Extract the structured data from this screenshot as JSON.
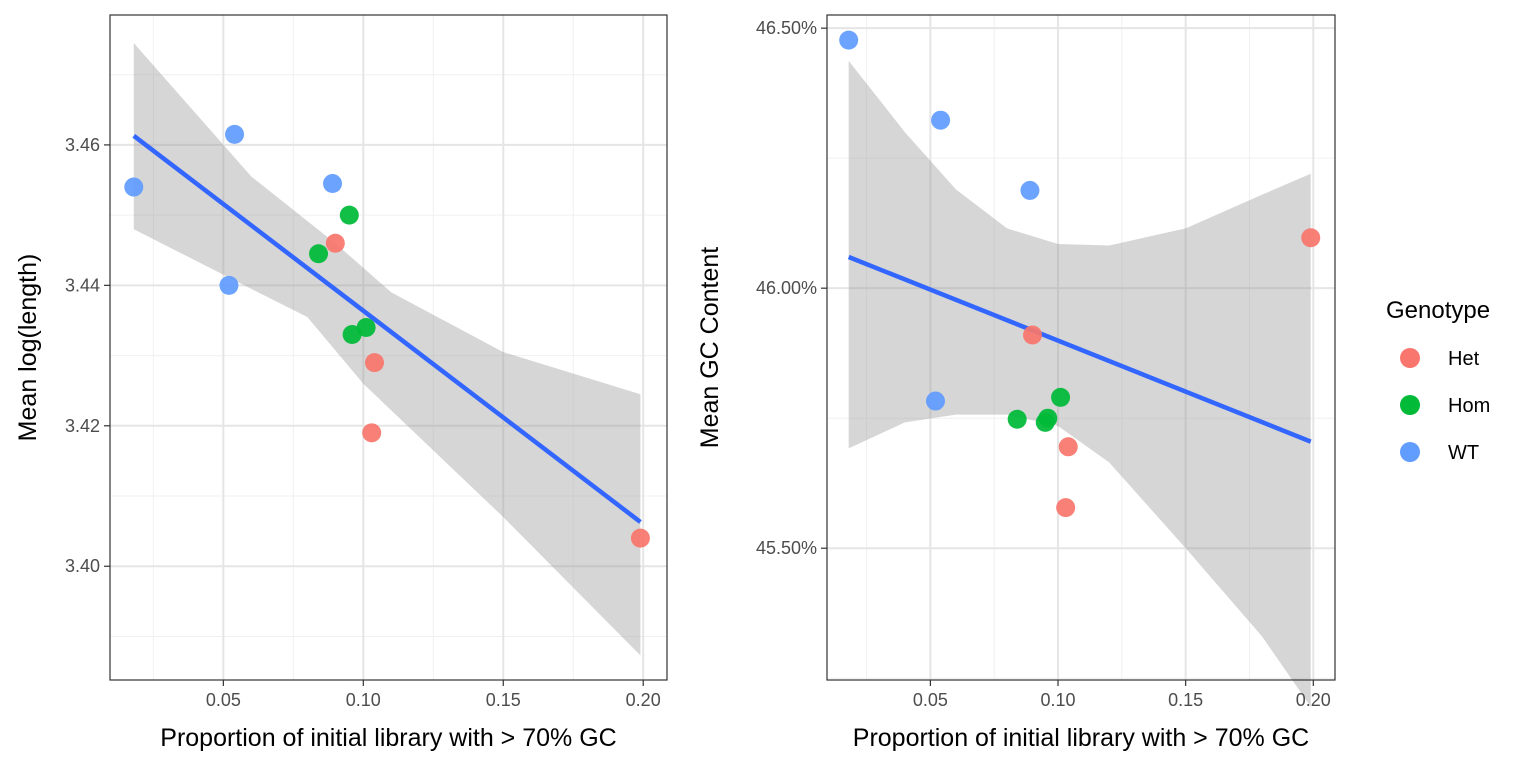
{
  "chart_data": [
    {
      "type": "scatter",
      "title": "",
      "xlabel": "Proportion of initial library with > 70% GC",
      "ylabel": "Mean log(length)",
      "xlim": [
        0.0095,
        0.2085
      ],
      "ylim": [
        3.3838,
        3.4785
      ],
      "x_ticks": [
        0.05,
        0.1,
        0.15,
        0.2
      ],
      "x_tick_labels": [
        "0.05",
        "0.10",
        "0.15",
        "0.20"
      ],
      "y_ticks": [
        3.4,
        3.42,
        3.44,
        3.46
      ],
      "y_tick_labels": [
        "3.40",
        "3.42",
        "3.44",
        "3.46"
      ],
      "grid": true,
      "series": [
        {
          "name": "Het",
          "color": "#F8766D",
          "points": [
            {
              "x": 0.09,
              "y": 3.446
            },
            {
              "x": 0.104,
              "y": 3.429
            },
            {
              "x": 0.103,
              "y": 3.419
            },
            {
              "x": 0.199,
              "y": 3.404
            }
          ]
        },
        {
          "name": "Hom",
          "color": "#00BA38",
          "points": [
            {
              "x": 0.095,
              "y": 3.45
            },
            {
              "x": 0.084,
              "y": 3.4445
            },
            {
              "x": 0.101,
              "y": 3.434
            },
            {
              "x": 0.096,
              "y": 3.433
            }
          ]
        },
        {
          "name": "WT",
          "color": "#619CFF",
          "points": [
            {
              "x": 0.054,
              "y": 3.4615
            },
            {
              "x": 0.089,
              "y": 3.4545
            },
            {
              "x": 0.018,
              "y": 3.454
            },
            {
              "x": 0.052,
              "y": 3.44
            }
          ]
        }
      ],
      "fit": {
        "color": "#3366FF",
        "line": [
          {
            "x": 0.018,
            "y": 3.4613
          },
          {
            "x": 0.199,
            "y": 3.4063
          }
        ],
        "band_upper": [
          {
            "x": 0.018,
            "y": 3.4745
          },
          {
            "x": 0.06,
            "y": 3.4555
          },
          {
            "x": 0.09,
            "y": 3.446
          },
          {
            "x": 0.11,
            "y": 3.439
          },
          {
            "x": 0.15,
            "y": 3.4305
          },
          {
            "x": 0.199,
            "y": 3.4245
          }
        ],
        "band_lower": [
          {
            "x": 0.018,
            "y": 3.448
          },
          {
            "x": 0.06,
            "y": 3.4395
          },
          {
            "x": 0.08,
            "y": 3.4355
          },
          {
            "x": 0.1,
            "y": 3.426
          },
          {
            "x": 0.15,
            "y": 3.407
          },
          {
            "x": 0.199,
            "y": 3.3873
          }
        ]
      }
    },
    {
      "type": "scatter",
      "title": "",
      "xlabel": "Proportion of initial library with > 70% GC",
      "ylabel": "Mean GC Content",
      "xlim": [
        0.0095,
        0.2085
      ],
      "ylim": [
        45.2466,
        46.5253
      ],
      "x_ticks": [
        0.05,
        0.1,
        0.15,
        0.2
      ],
      "x_tick_labels": [
        "0.05",
        "0.10",
        "0.15",
        "0.20"
      ],
      "y_ticks": [
        45.5,
        46.0,
        46.5
      ],
      "y_tick_labels": [
        "45.50%",
        "46.00%",
        "46.50%"
      ],
      "grid": true,
      "series": [
        {
          "name": "Het",
          "color": "#F8766D",
          "points": [
            {
              "x": 0.199,
              "y": 46.097
            },
            {
              "x": 0.09,
              "y": 45.91
            },
            {
              "x": 0.104,
              "y": 45.695
            },
            {
              "x": 0.103,
              "y": 45.578
            }
          ]
        },
        {
          "name": "Hom",
          "color": "#00BA38",
          "points": [
            {
              "x": 0.101,
              "y": 45.79
            },
            {
              "x": 0.084,
              "y": 45.748
            },
            {
              "x": 0.095,
              "y": 45.742
            },
            {
              "x": 0.096,
              "y": 45.75
            }
          ]
        },
        {
          "name": "WT",
          "color": "#619CFF",
          "points": [
            {
              "x": 0.018,
              "y": 46.477
            },
            {
              "x": 0.054,
              "y": 46.323
            },
            {
              "x": 0.089,
              "y": 46.188
            },
            {
              "x": 0.052,
              "y": 45.783
            }
          ]
        }
      ],
      "fit": {
        "color": "#3366FF",
        "line": [
          {
            "x": 0.018,
            "y": 46.06
          },
          {
            "x": 0.199,
            "y": 45.705
          }
        ],
        "band_upper": [
          {
            "x": 0.018,
            "y": 46.437
          },
          {
            "x": 0.04,
            "y": 46.3
          },
          {
            "x": 0.06,
            "y": 46.19
          },
          {
            "x": 0.08,
            "y": 46.115
          },
          {
            "x": 0.1,
            "y": 46.085
          },
          {
            "x": 0.12,
            "y": 46.082
          },
          {
            "x": 0.15,
            "y": 46.115
          },
          {
            "x": 0.18,
            "y": 46.18
          },
          {
            "x": 0.199,
            "y": 46.22
          }
        ],
        "band_lower": [
          {
            "x": 0.018,
            "y": 45.692
          },
          {
            "x": 0.04,
            "y": 45.742
          },
          {
            "x": 0.06,
            "y": 45.757
          },
          {
            "x": 0.08,
            "y": 45.757
          },
          {
            "x": 0.1,
            "y": 45.735
          },
          {
            "x": 0.12,
            "y": 45.665
          },
          {
            "x": 0.15,
            "y": 45.5
          },
          {
            "x": 0.18,
            "y": 45.33
          },
          {
            "x": 0.199,
            "y": 45.195
          }
        ]
      }
    }
  ],
  "legend": {
    "title": "Genotype",
    "placement": "right",
    "items": [
      {
        "label": "Het",
        "color": "#F8766D"
      },
      {
        "label": "Hom",
        "color": "#00BA38"
      },
      {
        "label": "WT",
        "color": "#619CFF"
      }
    ]
  }
}
